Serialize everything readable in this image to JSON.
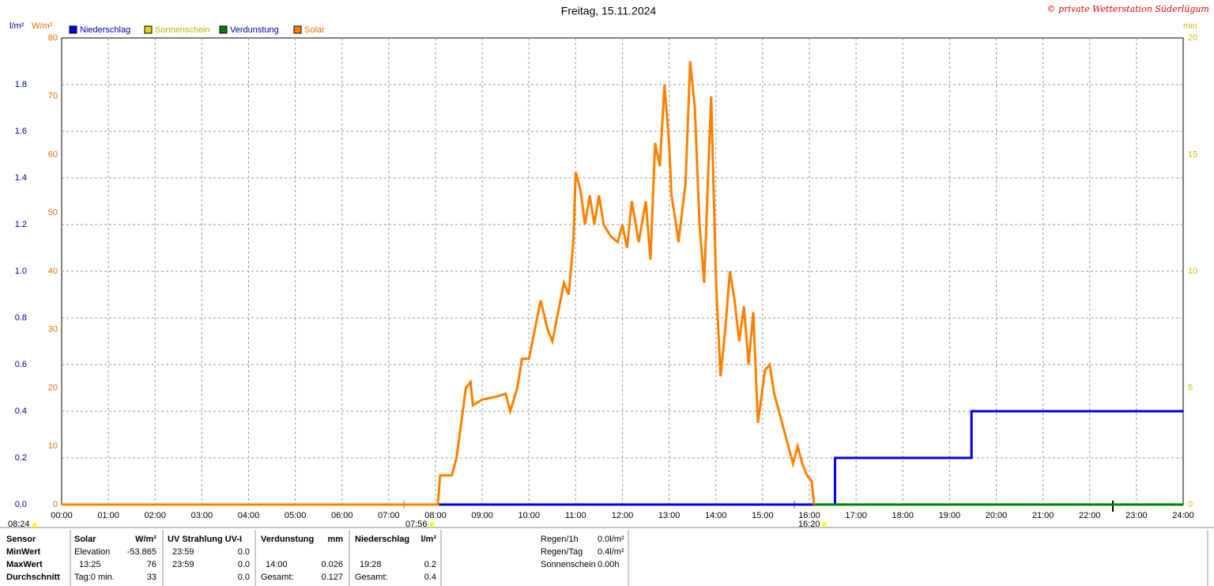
{
  "chart_data": {
    "type": "line",
    "title": "Freitag, 15.11.2024",
    "copyright": "© private Wetterstation Süderlügum",
    "y_axes": [
      {
        "label": "l/m²",
        "color": "#0000a0",
        "lim": [
          0,
          2
        ],
        "ticks": [
          {
            "value": 0,
            "label": "0.0"
          },
          {
            "value": 0.2,
            "label": "0.2"
          },
          {
            "value": 0.4,
            "label": "0.4"
          },
          {
            "value": 0.6,
            "label": "0.6"
          },
          {
            "value": 0.8,
            "label": "0.8"
          },
          {
            "value": 1,
            "label": "1.0"
          },
          {
            "value": 1.2,
            "label": "1.2"
          },
          {
            "value": 1.4,
            "label": "1.4"
          },
          {
            "value": 1.6,
            "label": "1.6"
          },
          {
            "value": 1.8,
            "label": "1.8"
          }
        ]
      },
      {
        "label": "W/m²",
        "color": "#e07000",
        "lim": [
          0,
          80
        ],
        "ticks": [
          0,
          10,
          20,
          30,
          40,
          50,
          60,
          70,
          80
        ]
      },
      {
        "label": "min",
        "color": "#d0c000",
        "lim": [
          0,
          20
        ],
        "ticks": [
          0,
          5,
          10,
          15,
          20
        ]
      }
    ],
    "xlim": [
      0,
      24
    ],
    "xticks": [
      {
        "value": 0,
        "label": "00:00"
      },
      {
        "value": 1,
        "label": "01:00"
      },
      {
        "value": 2,
        "label": "02:00"
      },
      {
        "value": 3,
        "label": "03:00"
      },
      {
        "value": 4,
        "label": "04:00"
      },
      {
        "value": 5,
        "label": "05:00"
      },
      {
        "value": 6,
        "label": "06:00"
      },
      {
        "value": 7,
        "label": "07:00"
      },
      {
        "value": 8,
        "label": "08:00"
      },
      {
        "value": 9,
        "label": "09:00"
      },
      {
        "value": 10,
        "label": "10:00"
      },
      {
        "value": 11,
        "label": "11:00"
      },
      {
        "value": 12,
        "label": "12:00"
      },
      {
        "value": 13,
        "label": "13:00"
      },
      {
        "value": 14,
        "label": "14:00"
      },
      {
        "value": 15,
        "label": "15:00"
      },
      {
        "value": 16,
        "label": "16:00"
      },
      {
        "value": 17,
        "label": "17:00"
      },
      {
        "value": 18,
        "label": "18:00"
      },
      {
        "value": 19,
        "label": "19:00"
      },
      {
        "value": 20,
        "label": "20:00"
      },
      {
        "value": 21,
        "label": "21:00"
      },
      {
        "value": 22,
        "label": "22:00"
      },
      {
        "value": 23,
        "label": "23:00"
      },
      {
        "value": 24,
        "label": "24:00"
      }
    ],
    "grid": true,
    "series": [
      {
        "name": "Niederschlag",
        "color": "#0000e0",
        "axis": 0,
        "x": [
          0,
          16.55,
          16.55,
          19.47,
          19.47,
          24
        ],
        "values": [
          0,
          0,
          0.2,
          0.2,
          0.4,
          0.4
        ]
      },
      {
        "name": "Sonnenschein",
        "color": "#d8d800",
        "axis": 2,
        "x": [],
        "values": []
      },
      {
        "name": "Verdunstung",
        "color": "#008000",
        "axis": 0,
        "x": [
          16.1,
          24
        ],
        "values": [
          0,
          0
        ]
      },
      {
        "name": "Solar",
        "color": "#ff8000",
        "axis": 1,
        "x": [
          0,
          8.05,
          8.1,
          8.35,
          8.45,
          8.55,
          8.65,
          8.75,
          8.8,
          9.0,
          9.3,
          9.5,
          9.6,
          9.75,
          9.85,
          10.0,
          10.25,
          10.4,
          10.5,
          10.6,
          10.75,
          10.85,
          10.95,
          11.0,
          11.1,
          11.2,
          11.3,
          11.4,
          11.5,
          11.6,
          11.75,
          11.9,
          12.0,
          12.1,
          12.2,
          12.35,
          12.5,
          12.6,
          12.7,
          12.8,
          12.9,
          13.0,
          13.05,
          13.15,
          13.2,
          13.35,
          13.45,
          13.55,
          13.65,
          13.75,
          13.85,
          13.9,
          14.0,
          14.1,
          14.2,
          14.3,
          14.4,
          14.5,
          14.6,
          14.7,
          14.8,
          14.9,
          15.05,
          15.15,
          15.25,
          15.35,
          15.45,
          15.55,
          15.65,
          15.75,
          15.85,
          15.95,
          16.05,
          16.1
        ],
        "values": [
          0,
          0,
          5,
          5,
          8,
          14,
          20,
          21,
          17,
          18,
          18.5,
          19,
          16,
          20,
          25,
          25,
          35,
          30,
          28,
          32,
          38,
          36,
          45,
          57,
          54,
          48,
          53,
          48,
          53,
          48,
          46,
          45,
          48,
          44,
          52,
          45,
          52,
          42,
          62,
          58,
          72,
          62,
          53,
          48,
          45,
          55,
          76,
          68,
          48,
          38,
          60,
          70,
          39,
          22,
          30,
          40,
          35,
          28,
          34,
          24,
          33,
          14,
          23,
          24,
          19,
          16,
          13,
          10,
          7,
          10,
          7,
          5,
          4,
          0
        ]
      }
    ]
  },
  "markers": {
    "left": "08:24",
    "sunrise": "07:56",
    "sunset": "16:20"
  },
  "stats": {
    "header": [
      "Sensor",
      "Solar",
      "W/m²",
      "UV Strahlung UV-I",
      "Verdunstung",
      "mm",
      "Niederschlag",
      "l/m²"
    ],
    "rows": [
      [
        "MinWert",
        "Elevation",
        "-53.865",
        "23:59",
        "0.0",
        null,
        null,
        null,
        null
      ],
      [
        "MaxWert",
        "13:25",
        "76",
        "23:59",
        "0.0",
        "14:00",
        "0.026",
        "19:28",
        "0.2"
      ],
      [
        "Durchschnitt",
        "Tag:0 min.",
        "33",
        null,
        "0.0",
        "Gesamt:",
        "0.127",
        "Gesamt:",
        "0.4"
      ]
    ]
  },
  "info": [
    [
      "Regen/1h",
      "0.0l/m²"
    ],
    [
      "Regen/Tag",
      "0.4l/m²"
    ],
    [
      "Sonnenschein",
      "0.00h"
    ]
  ]
}
